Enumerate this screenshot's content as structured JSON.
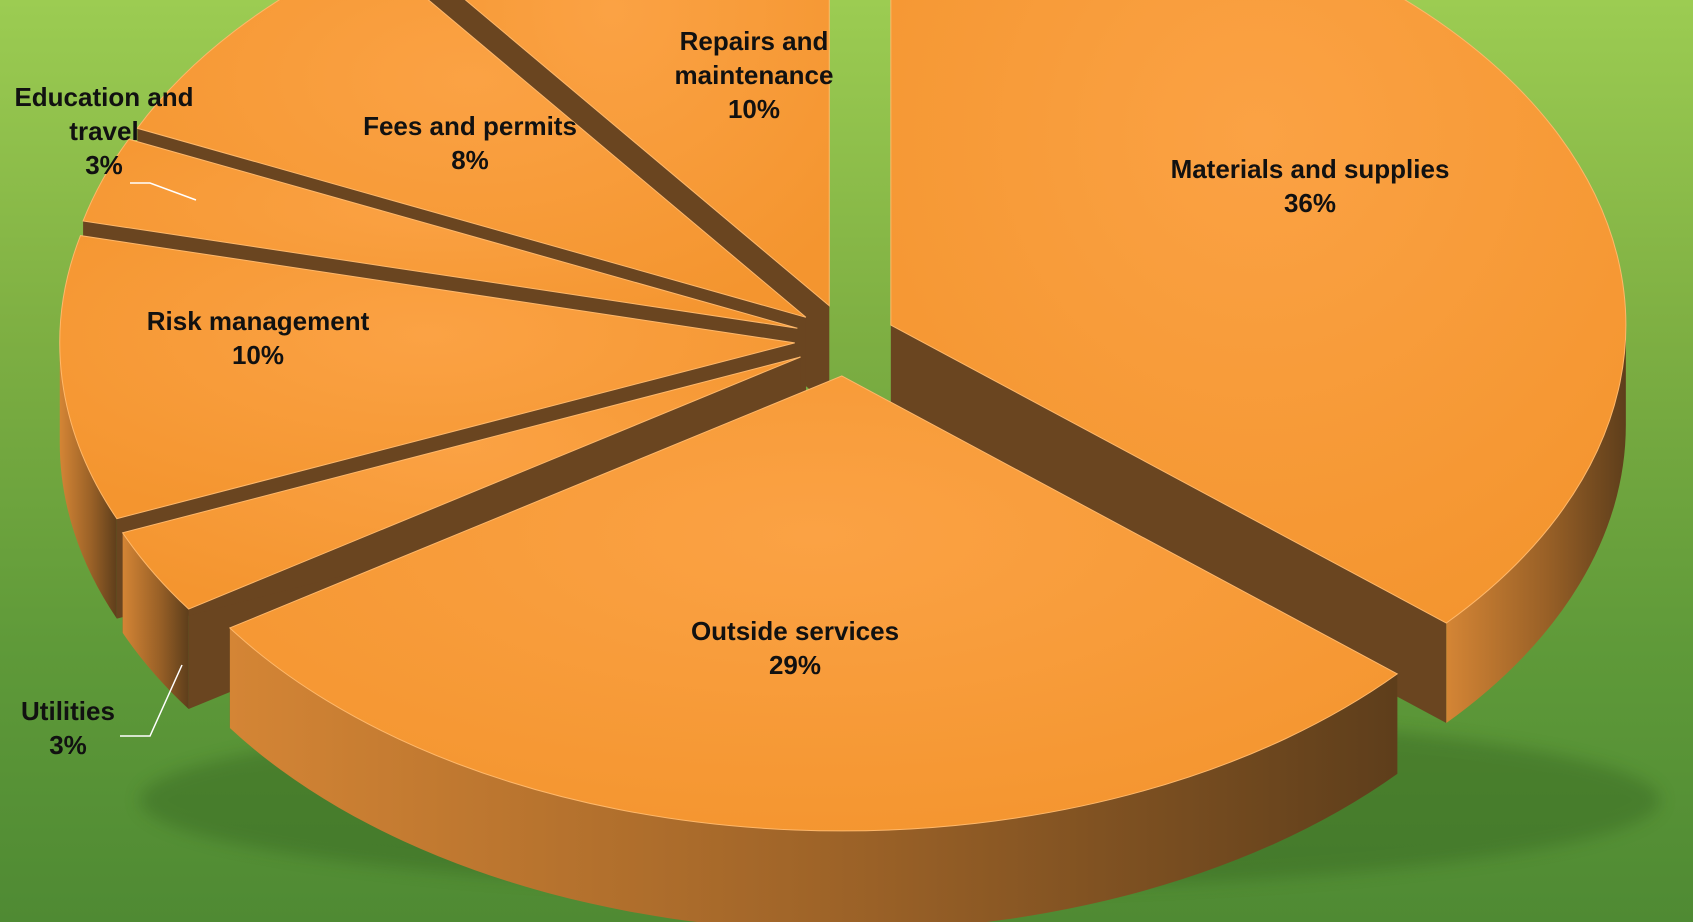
{
  "chart_data": {
    "type": "pie",
    "style": "3d-exploded",
    "title": "",
    "slices": [
      {
        "name": "Materials and supplies",
        "value": 36,
        "label": "36%"
      },
      {
        "name": "Outside services",
        "value": 29,
        "label": "29%"
      },
      {
        "name": "Utilities",
        "value": 3,
        "label": "3%"
      },
      {
        "name": "Risk management",
        "value": 10,
        "label": "10%"
      },
      {
        "name": "Education and travel",
        "value": 3,
        "label": "3%"
      },
      {
        "name": "Fees and permits",
        "value": 8,
        "label": "8%"
      },
      {
        "name": "Repairs and maintenance",
        "value": 10,
        "label": "10%"
      }
    ],
    "colors": {
      "top": "#f99c3d",
      "side_light": "#d08034",
      "side_dark": "#5e3e1b",
      "background": "#7fb043"
    },
    "legend": "none"
  }
}
